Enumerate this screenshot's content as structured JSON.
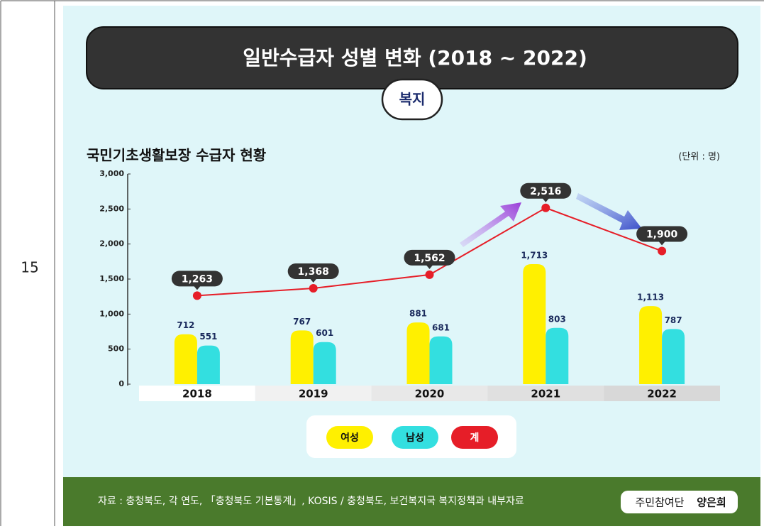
{
  "row_number": "15",
  "chart_data": {
    "type": "bar",
    "title": "일반수급자 성별 변화 (2018 ~ 2022)",
    "badge": "복지",
    "subtitle": "국민기초생활보장 수급자 현황",
    "unit": "(단위 : 명)",
    "categories": [
      "2018",
      "2019",
      "2020",
      "2021",
      "2022"
    ],
    "series": [
      {
        "name": "여성",
        "color": "#fff000",
        "values": [
          712,
          767,
          881,
          1713,
          1113
        ],
        "value_labels": [
          "712",
          "767",
          "881",
          "1,713",
          "1,113"
        ]
      },
      {
        "name": "남성",
        "color": "#33dfe0",
        "values": [
          551,
          601,
          681,
          803,
          787
        ]
      },
      {
        "name": "계",
        "color": "#e61e28",
        "type": "line",
        "values": [
          1263,
          1368,
          1562,
          2516,
          1900
        ],
        "value_labels": [
          "1,263",
          "1,368",
          "1,562",
          "2,516",
          "1,900"
        ]
      }
    ],
    "ylim": [
      0,
      3000
    ],
    "yticks": [
      0,
      500,
      {
        "value": 1000,
        "label": "1,000"
      },
      {
        "value": 1500,
        "label": "1,500"
      },
      {
        "value": 2000,
        "label": "2,000"
      },
      {
        "value": 2500,
        "label": "2,500"
      },
      {
        "value": 3000,
        "label": "3,000"
      }
    ],
    "legend": "bottom"
  },
  "footer": {
    "source": "자료 : 충청북도, 각 연도, 「충청북도 기본통계」, KOSIS / 충청북도, 보건복지국 복지정책과 내부자료",
    "reporter_role": "주민참여단",
    "reporter_name": "양은희"
  }
}
